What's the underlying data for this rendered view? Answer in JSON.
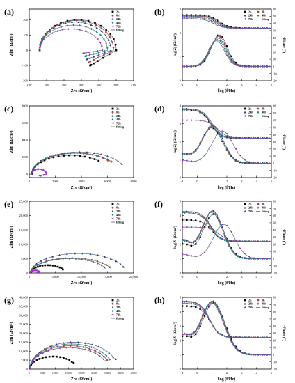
{
  "series_names": [
    "2h",
    "8h",
    "24h",
    "48h",
    "72h",
    "fitting"
  ],
  "legend_styles": {
    "2h": {
      "color": "#000000",
      "marker": "square"
    },
    "8h": {
      "color": "#c0392b",
      "marker": "circle"
    },
    "24h": {
      "color": "#1f3b9a",
      "marker": "triangle"
    },
    "48h": {
      "color": "#1a8a7a",
      "marker": "diamond"
    },
    "72h": {
      "color": "#9b2fc9",
      "marker": "triangle-left"
    },
    "fitting": {
      "color": "#5a6a7a",
      "marker": "line"
    }
  },
  "nyquist_xlabel": "Zre (Ω/cm²)",
  "nyquist_ylabel": "Zim (Ω/cm²)",
  "bode_xlabel": "log (f/Hz)",
  "bode_ylabel_left": "log|Z| (Ω/cm²)",
  "bode_ylabel_right": "-Phase (°)",
  "chart_data": [
    {
      "panel": "(a)",
      "type": "scatter",
      "kind": "nyquist",
      "xlim": [
        100,
        700
      ],
      "ylim": [
        -200,
        270
      ],
      "xticks": [
        100,
        200,
        300,
        400,
        500,
        600,
        700
      ],
      "yticks": [
        -200,
        -100,
        0,
        100,
        200
      ],
      "ytick_labels": [
        "-200",
        "-100",
        "0",
        "100",
        "200"
      ],
      "series": [
        {
          "name": "2h",
          "curve": "loop",
          "x0": 160,
          "x1": 600,
          "top": 200,
          "tail": -100,
          "tailx": 450
        },
        {
          "name": "8h",
          "curve": "loop",
          "x0": 160,
          "x1": 585,
          "top": 195,
          "tail": -80,
          "tailx": 440
        },
        {
          "name": "24h",
          "curve": "loop",
          "x0": 160,
          "x1": 570,
          "top": 185,
          "tail": -60,
          "tailx": 430
        },
        {
          "name": "48h",
          "curve": "loop",
          "x0": 160,
          "x1": 550,
          "top": 165,
          "tail": -40,
          "tailx": 420
        },
        {
          "name": "72h",
          "curve": "loop",
          "x0": 160,
          "x1": 520,
          "top": 140,
          "tail": -20,
          "tailx": 410
        }
      ]
    },
    {
      "panel": "(b)",
      "type": "line",
      "kind": "bode",
      "xlim": [
        -1,
        5
      ],
      "ylim_left": [
        0,
        3
      ],
      "ylim_right": [
        -20,
        80
      ],
      "xticks": [
        -1,
        0,
        1,
        2,
        3,
        4,
        5
      ],
      "yticks_left": [
        0,
        1,
        2,
        3
      ],
      "yticks_right": [
        -20,
        -10,
        0,
        10,
        20,
        30,
        40,
        50,
        60,
        70,
        80
      ],
      "series": [
        {
          "name": "2h",
          "zlow": 2.75,
          "zhigh": 2.2,
          "fc": 1.5,
          "ph_peak": 44,
          "ph_f": 1.5,
          "ph_w": 0.75,
          "ph_base": 0
        },
        {
          "name": "8h",
          "zlow": 2.72,
          "zhigh": 2.2,
          "fc": 1.4,
          "ph_peak": 42,
          "ph_f": 1.45,
          "ph_w": 0.75,
          "ph_base": 0
        },
        {
          "name": "24h",
          "zlow": 2.7,
          "zhigh": 2.2,
          "fc": 1.3,
          "ph_peak": 40,
          "ph_f": 1.4,
          "ph_w": 0.75,
          "ph_base": 0
        },
        {
          "name": "48h",
          "zlow": 2.65,
          "zhigh": 2.2,
          "fc": 1.2,
          "ph_peak": 38,
          "ph_f": 1.35,
          "ph_w": 0.75,
          "ph_base": 0
        },
        {
          "name": "72h",
          "zlow": 2.6,
          "zhigh": 2.2,
          "fc": 1.1,
          "ph_peak": 36,
          "ph_f": 1.3,
          "ph_w": 0.75,
          "ph_base": 0
        }
      ]
    },
    {
      "panel": "(c)",
      "type": "scatter",
      "kind": "nyquist",
      "xlim": [
        0,
        8000
      ],
      "ylim": [
        -400,
        8000
      ],
      "xticks": [
        0,
        2000,
        4000,
        6000,
        8000
      ],
      "yticks": [
        0,
        2000,
        4000,
        6000,
        8000
      ],
      "ytick_labels": [
        "0",
        "2000",
        "4000",
        "6000",
        "8000"
      ],
      "series": [
        {
          "name": "2h",
          "curve": "arc",
          "x0": 200,
          "x1": 6200,
          "top": 2200,
          "cut": 0.75,
          "endy": 1200
        },
        {
          "name": "8h",
          "curve": "arc",
          "x0": 200,
          "x1": 6800,
          "top": 2500,
          "cut": 0.8,
          "endy": 1100
        },
        {
          "name": "24h",
          "curve": "arc",
          "x0": 200,
          "x1": 7500,
          "top": 2600,
          "cut": 0.85,
          "endy": 1100
        },
        {
          "name": "48h",
          "curve": "arc",
          "x0": 200,
          "x1": 7000,
          "top": 2450,
          "cut": 0.82,
          "endy": 1000
        },
        {
          "name": "72h",
          "curve": "loop",
          "x0": 150,
          "x1": 1300,
          "top": 600,
          "tail": -200,
          "tailx": 800
        }
      ]
    },
    {
      "panel": "(d)",
      "type": "line",
      "kind": "bode",
      "xlim": [
        -1,
        5
      ],
      "ylim_left": [
        0,
        4
      ],
      "ylim_right": [
        -20,
        80
      ],
      "xticks": [
        -1,
        0,
        1,
        2,
        3,
        4,
        5
      ],
      "yticks_left": [
        0,
        1,
        2,
        3,
        4
      ],
      "yticks_right": [
        -20,
        -10,
        0,
        10,
        20,
        30,
        40,
        50,
        60,
        70,
        80
      ],
      "series": [
        {
          "name": "2h",
          "zlow": 3.8,
          "zhigh": 2.2,
          "fc": 0.9,
          "ph_peak": 50,
          "ph_f": 1.0,
          "ph_w": 1.0,
          "ph_base": 12
        },
        {
          "name": "8h",
          "zlow": 3.8,
          "zhigh": 2.2,
          "fc": 0.95,
          "ph_peak": 52,
          "ph_f": 1.05,
          "ph_w": 1.0,
          "ph_base": 12
        },
        {
          "name": "24h",
          "zlow": 3.85,
          "zhigh": 2.2,
          "fc": 1.0,
          "ph_peak": 53,
          "ph_f": 1.05,
          "ph_w": 1.0,
          "ph_base": 12
        },
        {
          "name": "48h",
          "zlow": 3.8,
          "zhigh": 2.2,
          "fc": 0.95,
          "ph_peak": 50,
          "ph_f": 1.0,
          "ph_w": 1.0,
          "ph_base": 12
        },
        {
          "name": "72h",
          "zlow": 3.2,
          "zhigh": 2.2,
          "fc": 1.4,
          "ph_peak": 45,
          "ph_f": 1.7,
          "ph_w": 1.0,
          "ph_base": 4
        }
      ]
    },
    {
      "panel": "(e)",
      "type": "scatter",
      "kind": "nyquist",
      "xlim": [
        0,
        20000
      ],
      "ylim": [
        0,
        25000
      ],
      "xticks": [
        0,
        5000,
        10000,
        15000,
        20000
      ],
      "xtick_labels": [
        "0",
        "5,000",
        "10,000",
        "15,000",
        "20,000"
      ],
      "yticks": [
        0,
        5000,
        10000,
        15000,
        20000,
        25000
      ],
      "ytick_labels": [
        "0",
        "5,000",
        "10,000",
        "15,000",
        "20,000",
        "25,000"
      ],
      "series": [
        {
          "name": "2h",
          "curve": "arc",
          "x0": 300,
          "x1": 6800,
          "top": 2700,
          "cut": 0.85,
          "endy": 1000
        },
        {
          "name": "8h",
          "curve": "arc",
          "x0": 300,
          "x1": 16000,
          "top": 5200,
          "cut": 0.9,
          "endy": 1600
        },
        {
          "name": "24h",
          "curve": "arc",
          "x0": 300,
          "x1": 18500,
          "top": 6800,
          "cut": 0.9,
          "endy": 2000
        },
        {
          "name": "48h",
          "curve": "arc",
          "x0": 300,
          "x1": 15000,
          "top": 5000,
          "cut": 0.9,
          "endy": 1400
        },
        {
          "name": "72h",
          "curve": "loop",
          "x0": 200,
          "x1": 2000,
          "top": 900,
          "tail": 100,
          "tailx": 1500
        }
      ]
    },
    {
      "panel": "(f)",
      "type": "line",
      "kind": "bode",
      "xlim": [
        -1,
        5
      ],
      "ylim_left": [
        0,
        5
      ],
      "ylim_right": [
        -20,
        80
      ],
      "xticks": [
        -1,
        0,
        1,
        2,
        3,
        4,
        5
      ],
      "yticks_left": [
        0,
        1,
        2,
        3,
        4,
        5
      ],
      "yticks_right": [
        -20,
        -10,
        0,
        10,
        20,
        30,
        40,
        50,
        60,
        70,
        80
      ],
      "series": [
        {
          "name": "2h",
          "zlow": 3.7,
          "zhigh": 2.2,
          "fc": 1.0,
          "ph_peak": 62,
          "ph_f": 1.1,
          "ph_w": 1.0,
          "ph_base": 20
        },
        {
          "name": "8h",
          "zlow": 4.2,
          "zhigh": 2.2,
          "fc": 0.95,
          "ph_peak": 66,
          "ph_f": 1.05,
          "ph_w": 1.0,
          "ph_base": 24
        },
        {
          "name": "24h",
          "zlow": 4.3,
          "zhigh": 2.2,
          "fc": 0.95,
          "ph_peak": 67,
          "ph_f": 1.05,
          "ph_w": 1.0,
          "ph_base": 26
        },
        {
          "name": "48h",
          "zlow": 4.2,
          "zhigh": 2.2,
          "fc": 0.9,
          "ph_peak": 65,
          "ph_f": 1.0,
          "ph_w": 1.0,
          "ph_base": 24
        },
        {
          "name": "72h",
          "zlow": 3.2,
          "zhigh": 2.2,
          "fc": 1.5,
          "ph_peak": 48,
          "ph_f": 1.8,
          "ph_w": 1.0,
          "ph_base": 6
        }
      ]
    },
    {
      "panel": "(g)",
      "type": "scatter",
      "kind": "nyquist",
      "xlim": [
        0,
        40000
      ],
      "ylim": [
        0,
        40000
      ],
      "xticks": [
        0,
        5000,
        10000,
        15000,
        20000,
        25000,
        30000,
        35000,
        40000
      ],
      "xtick_labels": [
        "0",
        "5000",
        "10000",
        "15000",
        "20000",
        "25000",
        "30000",
        "35000",
        "40000"
      ],
      "yticks": [
        0,
        5000,
        10000,
        15000,
        20000,
        25000,
        30000,
        35000,
        40000
      ],
      "ytick_labels": [
        "0",
        "5,000",
        "10,000",
        "15,000",
        "20,000",
        "25,000",
        "30,000",
        "35,000",
        "40,000"
      ],
      "series": [
        {
          "name": "2h",
          "curve": "arc",
          "x0": 300,
          "x1": 18000,
          "top": 7000,
          "cut": 0.85,
          "endy": 3500
        },
        {
          "name": "8h",
          "curve": "arc",
          "x0": 300,
          "x1": 31000,
          "top": 13000,
          "cut": 0.9,
          "endy": 5000
        },
        {
          "name": "24h",
          "curve": "arc",
          "x0": 300,
          "x1": 34000,
          "top": 15000,
          "cut": 0.9,
          "endy": 5500
        },
        {
          "name": "48h",
          "curve": "arc",
          "x0": 300,
          "x1": 32000,
          "top": 14000,
          "cut": 0.9,
          "endy": 5000
        },
        {
          "name": "72h",
          "curve": "arc",
          "x0": 300,
          "x1": 30000,
          "top": 12000,
          "cut": 0.9,
          "endy": 4500
        }
      ]
    },
    {
      "panel": "(h)",
      "type": "line",
      "kind": "bode",
      "xlim": [
        -1,
        5
      ],
      "ylim_left": [
        0,
        5
      ],
      "ylim_right": [
        -20,
        80
      ],
      "xticks": [
        -1,
        0,
        1,
        2,
        3,
        4,
        5
      ],
      "yticks_left": [
        0,
        1,
        2,
        3,
        4,
        5
      ],
      "yticks_right": [
        -20,
        -10,
        0,
        10,
        20,
        30,
        40,
        50,
        60,
        70,
        80
      ],
      "series": [
        {
          "name": "2h",
          "zlow": 4.4,
          "zhigh": 2.2,
          "fc": 0.9,
          "ph_peak": 72,
          "ph_f": 1.1,
          "ph_w": 1.1,
          "ph_base": 24
        },
        {
          "name": "8h",
          "zlow": 4.7,
          "zhigh": 2.2,
          "fc": 0.85,
          "ph_peak": 74,
          "ph_f": 1.05,
          "ph_w": 1.1,
          "ph_base": 26
        },
        {
          "name": "24h",
          "zlow": 4.75,
          "zhigh": 2.2,
          "fc": 0.85,
          "ph_peak": 75,
          "ph_f": 1.05,
          "ph_w": 1.1,
          "ph_base": 26
        },
        {
          "name": "48h",
          "zlow": 4.7,
          "zhigh": 2.2,
          "fc": 0.85,
          "ph_peak": 74,
          "ph_f": 1.0,
          "ph_w": 1.1,
          "ph_base": 26
        },
        {
          "name": "72h",
          "zlow": 4.6,
          "zhigh": 2.2,
          "fc": 0.85,
          "ph_peak": 72,
          "ph_f": 1.0,
          "ph_w": 1.1,
          "ph_base": 25
        }
      ]
    }
  ]
}
